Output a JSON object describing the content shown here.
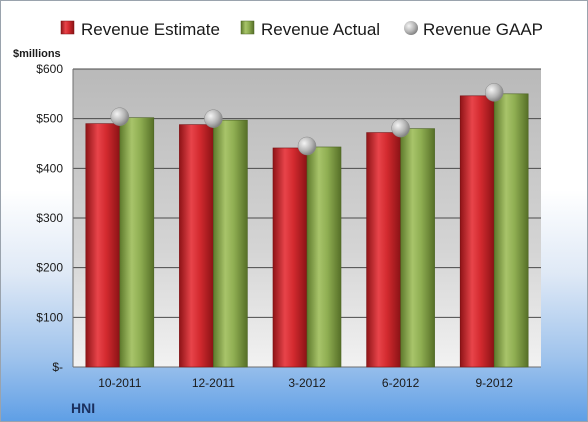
{
  "chart_data": {
    "type": "bar",
    "ylabel": "$millions",
    "company": "HNI",
    "categories": [
      "10-2011",
      "12-2011",
      "3-2012",
      "6-2012",
      "9-2012"
    ],
    "ylim": [
      0,
      600
    ],
    "yticks": [
      0,
      100,
      200,
      300,
      400,
      500,
      600
    ],
    "ytick_labels": [
      "$-",
      "$100",
      "$200",
      "$300",
      "$400",
      "$500",
      "$600"
    ],
    "legend_position": "top",
    "grid": true,
    "series": [
      {
        "name": "Revenue Estimate",
        "kind": "bar",
        "color": "#d9262b",
        "values": [
          490,
          488,
          441,
          472,
          546
        ]
      },
      {
        "name": "Revenue Actual",
        "kind": "bar",
        "color": "#8aaa4d",
        "values": [
          502,
          497,
          443,
          480,
          550
        ]
      },
      {
        "name": "Revenue GAAP",
        "kind": "marker",
        "color": "#b8b8b8",
        "values": [
          504,
          500,
          445,
          481,
          553
        ]
      }
    ]
  }
}
